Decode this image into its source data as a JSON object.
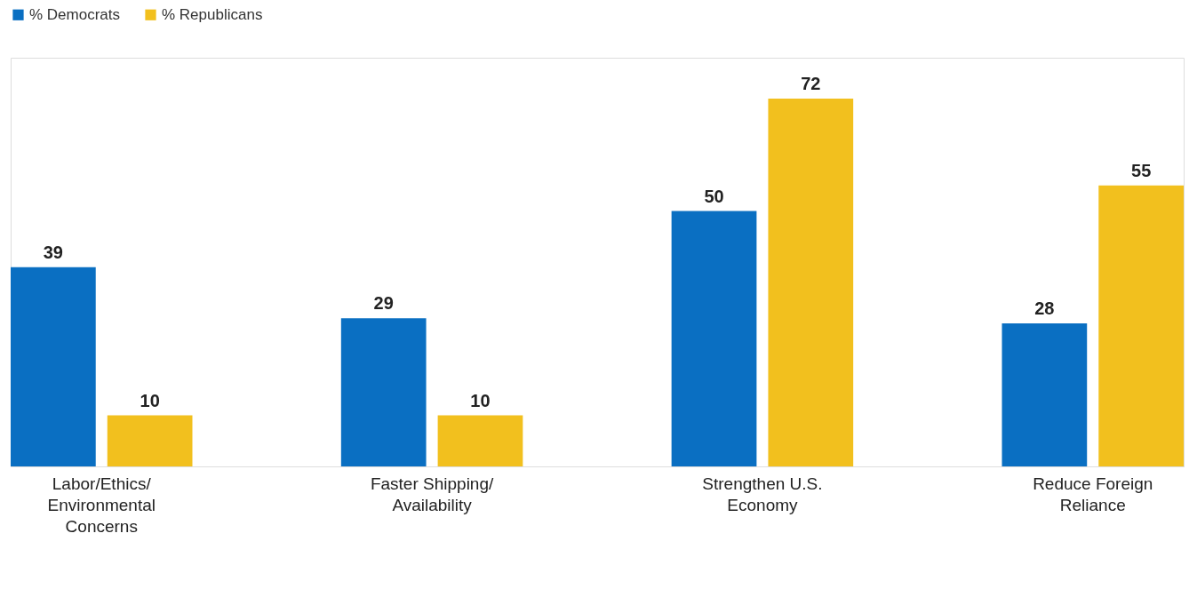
{
  "chart_data": {
    "type": "bar",
    "categories": [
      "Labor/Ethics/Environmental Concerns",
      "Faster Shipping/Availability",
      "Strengthen U.S. Economy",
      "Reduce Foreign Reliance"
    ],
    "series": [
      {
        "name": "% Democrats",
        "color": "#0a6fc2",
        "values": [
          39,
          29,
          50,
          28
        ]
      },
      {
        "name": "% Republicans",
        "color": "#f2c01e",
        "values": [
          10,
          10,
          72,
          55
        ]
      }
    ],
    "data_labels": true,
    "legend": "top left",
    "grid": false
  }
}
